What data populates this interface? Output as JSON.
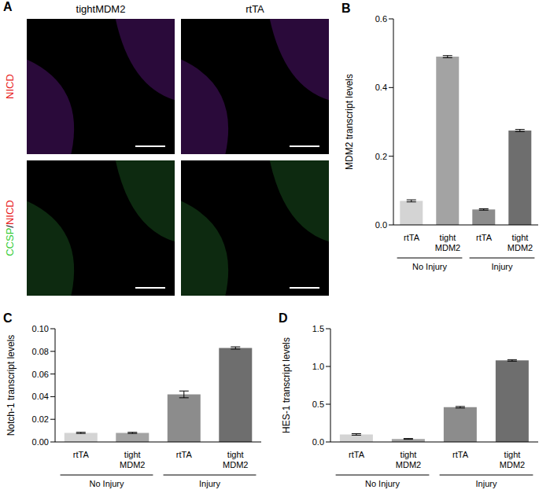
{
  "panel_a": {
    "panel": "A",
    "columns": [
      "tightMDM2",
      "rtTA"
    ],
    "rows": [
      "NICD",
      "CCSP/NICD"
    ]
  },
  "chart_data": [
    {
      "type": "bar",
      "panel": "B",
      "y_label": "MDM2 transcript levels",
      "categories": [
        "rtTA",
        "tight MDM2",
        "rtTA",
        "tight MDM2"
      ],
      "groups": [
        "No Injury",
        "Injury"
      ],
      "values": [
        0.07,
        0.49,
        0.045,
        0.275
      ],
      "errors": [
        0.003,
        0.003,
        0.002,
        0.003
      ],
      "colors": [
        "#d4d4d4",
        "#a3a3a3",
        "#8c8c8c",
        "#6e6e6e"
      ],
      "ylim": [
        0,
        0.6
      ],
      "yticks": [
        {
          "value": 0,
          "label": "0.0"
        },
        {
          "value": 0.2,
          "label": "0.2"
        },
        {
          "value": 0.4,
          "label": "0.4"
        },
        {
          "value": 0.6,
          "label": "0.6"
        }
      ]
    },
    {
      "type": "bar",
      "panel": "C",
      "y_label": "Notch-1 transcript levels",
      "categories": [
        "rtTA",
        "tight MDM2",
        "rtTA",
        "tight MDM2"
      ],
      "groups": [
        "No Injury",
        "Injury"
      ],
      "values": [
        0.008,
        0.008,
        0.042,
        0.083
      ],
      "errors": [
        0.0005,
        0.0005,
        0.003,
        0.001
      ],
      "colors": [
        "#d4d4d4",
        "#a3a3a3",
        "#8c8c8c",
        "#6e6e6e"
      ],
      "ylim": [
        0,
        0.1
      ],
      "yticks": [
        {
          "value": 0,
          "label": "0.00"
        },
        {
          "value": 0.02,
          "label": "0.02"
        },
        {
          "value": 0.04,
          "label": "0.04"
        },
        {
          "value": 0.06,
          "label": "0.06"
        },
        {
          "value": 0.08,
          "label": "0.08"
        },
        {
          "value": 0.1,
          "label": "0.10"
        }
      ]
    },
    {
      "type": "bar",
      "panel": "D",
      "y_label": "HES-1 transcript levels",
      "categories": [
        "rtTA",
        "tight MDM2",
        "rtTA",
        "tight MDM2"
      ],
      "groups": [
        "No Injury",
        "Injury"
      ],
      "values": [
        0.1,
        0.04,
        0.46,
        1.08
      ],
      "errors": [
        0.01,
        0.005,
        0.01,
        0.01
      ],
      "colors": [
        "#d4d4d4",
        "#a3a3a3",
        "#8c8c8c",
        "#6e6e6e"
      ],
      "ylim": [
        0,
        1.5
      ],
      "yticks": [
        {
          "value": 0,
          "label": "0.0"
        },
        {
          "value": 0.5,
          "label": "0.5"
        },
        {
          "value": 1,
          "label": "1.0"
        },
        {
          "value": 1.5,
          "label": "1.5"
        }
      ]
    }
  ]
}
